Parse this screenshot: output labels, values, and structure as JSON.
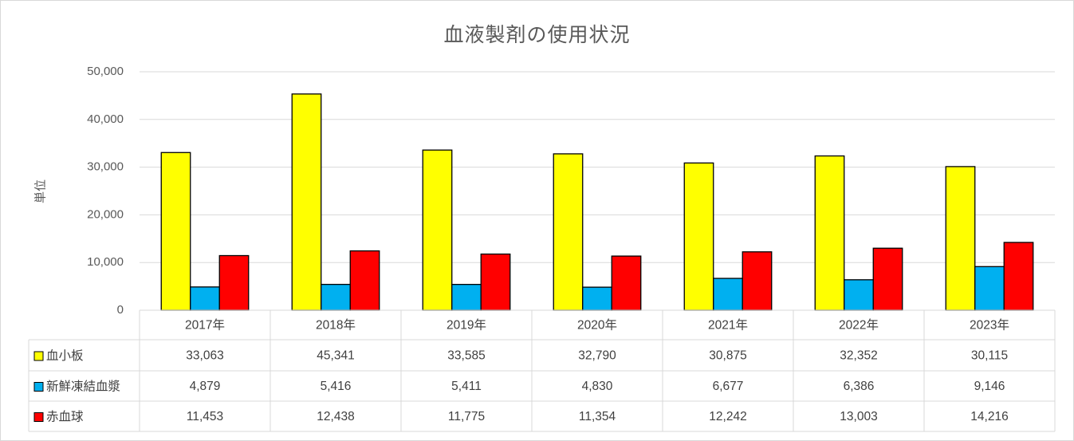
{
  "chart_data": {
    "type": "bar",
    "title": "血液製剤の使用状況",
    "ylabel": "単位",
    "xlabel": "",
    "ylim": [
      0,
      50000
    ],
    "yticks": [
      "0",
      "10,000",
      "20,000",
      "30,000",
      "40,000",
      "50,000"
    ],
    "ytick_values": [
      0,
      10000,
      20000,
      30000,
      40000,
      50000
    ],
    "grid": true,
    "legend": "data-table",
    "categories": [
      "2017年",
      "2018年",
      "2019年",
      "2020年",
      "2021年",
      "2022年",
      "2023年"
    ],
    "series": [
      {
        "name": "血小板",
        "color": "#ffff00",
        "values": [
          33063,
          45341,
          33585,
          32790,
          30875,
          32352,
          30115
        ],
        "labels": [
          "33,063",
          "45,341",
          "33,585",
          "32,790",
          "30,875",
          "32,352",
          "30,115"
        ]
      },
      {
        "name": "新鮮凍結血漿",
        "color": "#00b0f0",
        "values": [
          4879,
          5416,
          5411,
          4830,
          6677,
          6386,
          9146
        ],
        "labels": [
          "4,879",
          "5,416",
          "5,411",
          "4,830",
          "6,677",
          "6,386",
          "9,146"
        ]
      },
      {
        "name": "赤血球",
        "color": "#ff0000",
        "values": [
          11453,
          12438,
          11775,
          11354,
          12242,
          13003,
          14216
        ],
        "labels": [
          "11,453",
          "12,438",
          "11,775",
          "11,354",
          "12,242",
          "13,003",
          "14,216"
        ]
      }
    ]
  }
}
